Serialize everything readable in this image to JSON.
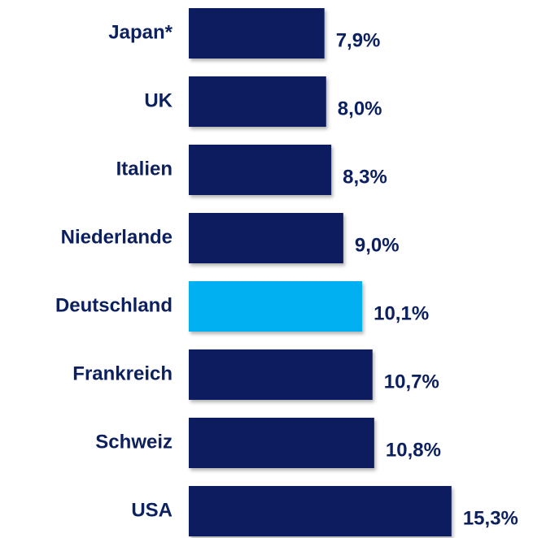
{
  "chart_data": {
    "type": "bar",
    "orientation": "horizontal",
    "categories": [
      "Japan*",
      "UK",
      "Italien",
      "Niederlande",
      "Deutschland",
      "Frankreich",
      "Schweiz",
      "USA"
    ],
    "values": [
      7.9,
      8.0,
      8.3,
      9.0,
      10.1,
      10.7,
      10.8,
      15.3
    ],
    "value_labels": [
      "7,9%",
      "8,0%",
      "8,3%",
      "9,0%",
      "10,1%",
      "10,7%",
      "10,8%",
      "15,3%"
    ],
    "colors": [
      "#0c1f5e",
      "#0c1f5e",
      "#0c1f5e",
      "#0c1f5e",
      "#00b0f0",
      "#0c1f5e",
      "#0c1f5e",
      "#0c1f5e"
    ],
    "label_color": "#0c1f5e"
  }
}
